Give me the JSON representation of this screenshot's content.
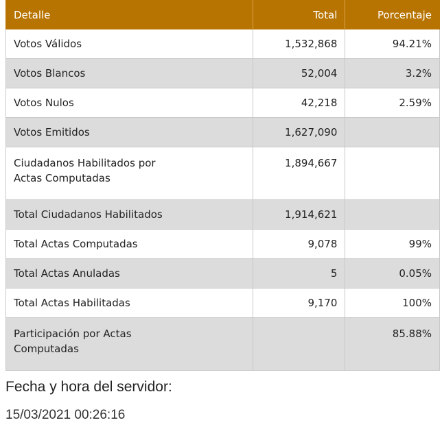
{
  "table": {
    "headers": {
      "detail": "Detalle",
      "total": "Total",
      "percentage": "Porcentaje"
    },
    "rows": [
      {
        "label": "Votos Válidos",
        "total": "1,532,868",
        "percentage": "94.21%"
      },
      {
        "label": "Votos Blancos",
        "total": "52,004",
        "percentage": "3.2%"
      },
      {
        "label": "Votos Nulos",
        "total": "42,218",
        "percentage": "2.59%"
      },
      {
        "label": "Votos Emitidos",
        "total": "1,627,090",
        "percentage": ""
      },
      {
        "label": "Ciudadanos Habilitados por Actas Computadas",
        "total": "1,894,667",
        "percentage": ""
      },
      {
        "label": "Total Ciudadanos Habilitados",
        "total": "1,914,621",
        "percentage": ""
      },
      {
        "label": "Total Actas Computadas",
        "total": "9,078",
        "percentage": "99%"
      },
      {
        "label": "Total Actas Anuladas",
        "total": "5",
        "percentage": "0.05%"
      },
      {
        "label": "Total Actas Habilitadas",
        "total": "9,170",
        "percentage": "100%"
      },
      {
        "label": "Participación por Actas Computadas",
        "total": "",
        "percentage": "85.88%"
      }
    ]
  },
  "server_time": {
    "label": "Fecha y hora del servidor:",
    "value": "15/03/2021 00:26:16"
  },
  "colors": {
    "header_bg": "#b87400",
    "header_text": "#ffffff",
    "alt_row_bg": "#dcdcdc"
  }
}
